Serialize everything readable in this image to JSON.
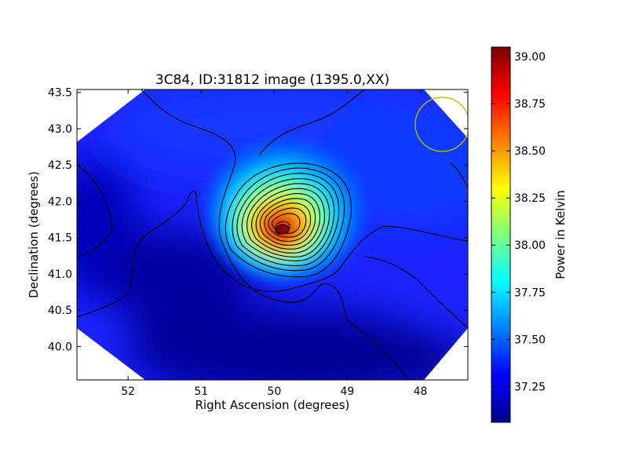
{
  "chart_data": {
    "type": "heatmap",
    "title": "3C84, ID:31812 image (1395.0,XX)",
    "xlabel": "Right Ascension (degrees)",
    "ylabel": "Declination (degrees)",
    "xlim": [
      52.7,
      47.35
    ],
    "ylim": [
      39.54,
      43.54
    ],
    "x_ticks": [
      52,
      51,
      50,
      49,
      48
    ],
    "x_tick_labels": [
      "52",
      "51",
      "50",
      "49",
      "48"
    ],
    "y_ticks": [
      40.0,
      40.5,
      41.0,
      41.5,
      42.0,
      42.5,
      43.0,
      43.5
    ],
    "y_tick_labels": [
      "40.0",
      "40.5",
      "41.0",
      "41.5",
      "42.0",
      "42.5",
      "43.0",
      "43.5"
    ],
    "colorbar": {
      "label": "Power in Kelvin",
      "colormap": "jet",
      "range": [
        37.06,
        39.05
      ],
      "ticks": [
        37.25,
        37.5,
        37.75,
        38.0,
        38.25,
        38.5,
        38.75,
        39.0
      ],
      "tick_labels": [
        "37.25",
        "37.50",
        "37.75",
        "38.00",
        "38.25",
        "38.50",
        "38.75",
        "39.00"
      ]
    },
    "peak": {
      "ra": 49.85,
      "dec": 41.58,
      "value": 39.0
    },
    "background_level": 37.3,
    "contour_levels": [
      37.2,
      37.32,
      37.44,
      37.56,
      37.68,
      37.8,
      37.92,
      38.04,
      38.16,
      38.28,
      38.4,
      38.52,
      38.64,
      38.76,
      38.88,
      38.97
    ],
    "beam_circle": {
      "ra": 47.7,
      "dec": 43.06,
      "radius_deg": 0.37,
      "color": "#bfbf00"
    },
    "grid": false
  }
}
